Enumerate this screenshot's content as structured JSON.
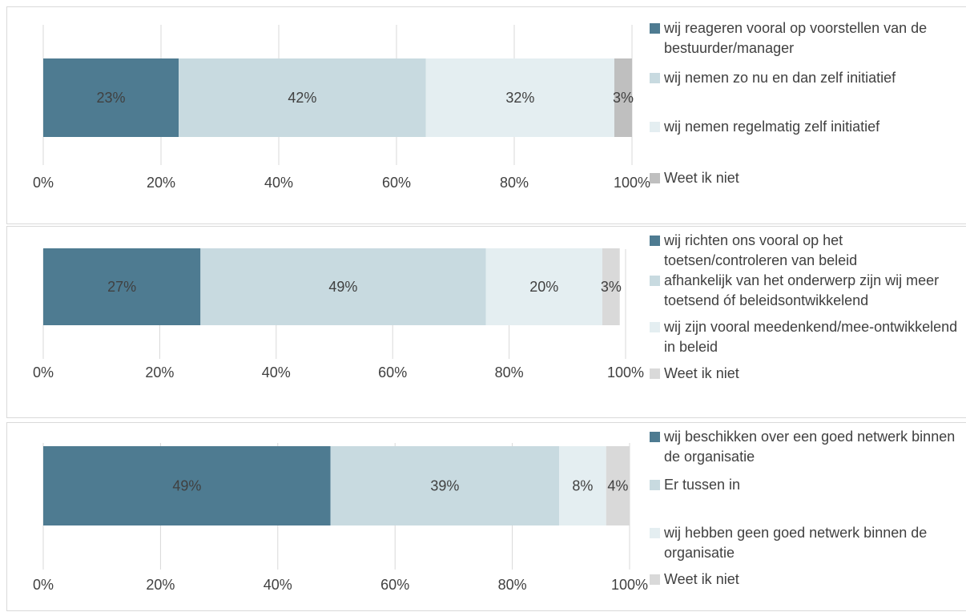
{
  "chart_data": [
    {
      "type": "bar",
      "orientation": "horizontal",
      "stacked": true,
      "legend": "right",
      "grid": true,
      "xlim": [
        0,
        100
      ],
      "xticks": [
        {
          "value": 0,
          "label": "0%"
        },
        {
          "value": 20,
          "label": "20%"
        },
        {
          "value": 40,
          "label": "40%"
        },
        {
          "value": 60,
          "label": "60%"
        },
        {
          "value": 80,
          "label": "80%"
        },
        {
          "value": 100,
          "label": "100%"
        }
      ],
      "series": [
        {
          "name": "wij reageren vooral op voorstellen van de bestuurder/manager",
          "color": "#4e7b91",
          "values": [
            23
          ],
          "value_labels": [
            "23%"
          ]
        },
        {
          "name": "wij nemen zo nu en dan zelf initiatief",
          "color": "#c8dae0",
          "values": [
            42
          ],
          "value_labels": [
            "42%"
          ]
        },
        {
          "name": "wij nemen regelmatig zelf initiatief",
          "color": "#e4eef1",
          "values": [
            32
          ],
          "value_labels": [
            "32%"
          ]
        },
        {
          "name": "Weet ik niet",
          "color": "#bfbfbf",
          "values": [
            3
          ],
          "value_labels": [
            "3%"
          ]
        }
      ]
    },
    {
      "type": "bar",
      "orientation": "horizontal",
      "stacked": true,
      "legend": "right",
      "grid": true,
      "xlim": [
        0,
        100
      ],
      "xticks": [
        {
          "value": 0,
          "label": "0%"
        },
        {
          "value": 20,
          "label": "20%"
        },
        {
          "value": 40,
          "label": "40%"
        },
        {
          "value": 60,
          "label": "60%"
        },
        {
          "value": 80,
          "label": "80%"
        },
        {
          "value": 100,
          "label": "100%"
        }
      ],
      "series": [
        {
          "name": "wij richten ons vooral op het toetsen/controleren van beleid",
          "color": "#4e7b91",
          "values": [
            27
          ],
          "value_labels": [
            "27%"
          ]
        },
        {
          "name": "afhankelijk van het onderwerp zijn wij meer toetsend óf beleidsontwikkelend",
          "color": "#c8dae0",
          "values": [
            49
          ],
          "value_labels": [
            "49%"
          ]
        },
        {
          "name": "wij zijn vooral meedenkend/mee-ontwikkelend in beleid",
          "color": "#e4eef1",
          "values": [
            20
          ],
          "value_labels": [
            "20%"
          ]
        },
        {
          "name": "Weet ik niet",
          "color": "#d9d9d9",
          "values": [
            3
          ],
          "value_labels": [
            "3%"
          ]
        }
      ]
    },
    {
      "type": "bar",
      "orientation": "horizontal",
      "stacked": true,
      "legend": "right",
      "grid": true,
      "xlim": [
        0,
        100
      ],
      "xticks": [
        {
          "value": 0,
          "label": "0%"
        },
        {
          "value": 20,
          "label": "20%"
        },
        {
          "value": 40,
          "label": "40%"
        },
        {
          "value": 60,
          "label": "60%"
        },
        {
          "value": 80,
          "label": "80%"
        },
        {
          "value": 100,
          "label": "100%"
        }
      ],
      "series": [
        {
          "name": "wij beschikken over een goed netwerk binnen de organisatie",
          "color": "#4e7b91",
          "values": [
            49
          ],
          "value_labels": [
            "49%"
          ]
        },
        {
          "name": "Er tussen in",
          "color": "#c8dae0",
          "values": [
            39
          ],
          "value_labels": [
            "39%"
          ]
        },
        {
          "name": "wij hebben geen goed netwerk binnen de organisatie",
          "color": "#e4eef1",
          "values": [
            8
          ],
          "value_labels": [
            "8%"
          ]
        },
        {
          "name": "Weet ik niet",
          "color": "#d9d9d9",
          "values": [
            4
          ],
          "value_labels": [
            "4%"
          ]
        }
      ]
    }
  ]
}
